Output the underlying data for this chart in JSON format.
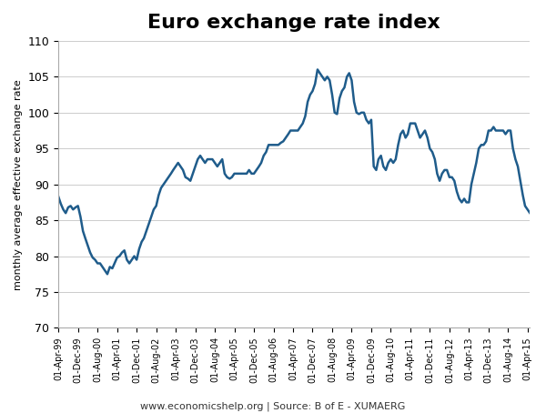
{
  "title": "Euro exchange rate index",
  "ylabel": "monthly average effective exchange rate",
  "source_text": "www.economicshelp.org | Source: B of E - XUMAERG",
  "line_color": "#1F5C8B",
  "line_width": 1.8,
  "ylim": [
    70,
    110
  ],
  "yticks": [
    70,
    75,
    80,
    85,
    90,
    95,
    100,
    105,
    110
  ],
  "background_color": "#FFFFFF",
  "title_fontsize": 16,
  "data": {
    "dates": [
      "1999-04-01",
      "1999-05-01",
      "1999-06-01",
      "1999-07-01",
      "1999-08-01",
      "1999-09-01",
      "1999-10-01",
      "1999-11-01",
      "1999-12-01",
      "2000-01-01",
      "2000-02-01",
      "2000-03-01",
      "2000-04-01",
      "2000-05-01",
      "2000-06-01",
      "2000-07-01",
      "2000-08-01",
      "2000-09-01",
      "2000-10-01",
      "2000-11-01",
      "2000-12-01",
      "2001-01-01",
      "2001-02-01",
      "2001-03-01",
      "2001-04-01",
      "2001-05-01",
      "2001-06-01",
      "2001-07-01",
      "2001-08-01",
      "2001-09-01",
      "2001-10-01",
      "2001-11-01",
      "2001-12-01",
      "2002-01-01",
      "2002-02-01",
      "2002-03-01",
      "2002-04-01",
      "2002-05-01",
      "2002-06-01",
      "2002-07-01",
      "2002-08-01",
      "2002-09-01",
      "2002-10-01",
      "2002-11-01",
      "2002-12-01",
      "2003-01-01",
      "2003-02-01",
      "2003-03-01",
      "2003-04-01",
      "2003-05-01",
      "2003-06-01",
      "2003-07-01",
      "2003-08-01",
      "2003-09-01",
      "2003-10-01",
      "2003-11-01",
      "2003-12-01",
      "2004-01-01",
      "2004-02-01",
      "2004-03-01",
      "2004-04-01",
      "2004-05-01",
      "2004-06-01",
      "2004-07-01",
      "2004-08-01",
      "2004-09-01",
      "2004-10-01",
      "2004-11-01",
      "2004-12-01",
      "2005-01-01",
      "2005-02-01",
      "2005-03-01",
      "2005-04-01",
      "2005-05-01",
      "2005-06-01",
      "2005-07-01",
      "2005-08-01",
      "2005-09-01",
      "2005-10-01",
      "2005-11-01",
      "2005-12-01",
      "2006-01-01",
      "2006-02-01",
      "2006-03-01",
      "2006-04-01",
      "2006-05-01",
      "2006-06-01",
      "2006-07-01",
      "2006-08-01",
      "2006-09-01",
      "2006-10-01",
      "2006-11-01",
      "2006-12-01",
      "2007-01-01",
      "2007-02-01",
      "2007-03-01",
      "2007-04-01",
      "2007-05-01",
      "2007-06-01",
      "2007-07-01",
      "2007-08-01",
      "2007-09-01",
      "2007-10-01",
      "2007-11-01",
      "2007-12-01",
      "2008-01-01",
      "2008-02-01",
      "2008-03-01",
      "2008-04-01",
      "2008-05-01",
      "2008-06-01",
      "2008-07-01",
      "2008-08-01",
      "2008-09-01",
      "2008-10-01",
      "2008-11-01",
      "2008-12-01",
      "2009-01-01",
      "2009-02-01",
      "2009-03-01",
      "2009-04-01",
      "2009-05-01",
      "2009-06-01",
      "2009-07-01",
      "2009-08-01",
      "2009-09-01",
      "2009-10-01",
      "2009-11-01",
      "2009-12-01",
      "2010-01-01",
      "2010-02-01",
      "2010-03-01",
      "2010-04-01",
      "2010-05-01",
      "2010-06-01",
      "2010-07-01",
      "2010-08-01",
      "2010-09-01",
      "2010-10-01",
      "2010-11-01",
      "2010-12-01",
      "2011-01-01",
      "2011-02-01",
      "2011-03-01",
      "2011-04-01",
      "2011-05-01",
      "2011-06-01",
      "2011-07-01",
      "2011-08-01",
      "2011-09-01",
      "2011-10-01",
      "2011-11-01",
      "2011-12-01",
      "2012-01-01",
      "2012-02-01",
      "2012-03-01",
      "2012-04-01",
      "2012-05-01",
      "2012-06-01",
      "2012-07-01",
      "2012-08-01",
      "2012-09-01",
      "2012-10-01",
      "2012-11-01",
      "2012-12-01",
      "2013-01-01",
      "2013-02-01",
      "2013-03-01",
      "2013-04-01",
      "2013-05-01",
      "2013-06-01",
      "2013-07-01",
      "2013-08-01",
      "2013-09-01",
      "2013-10-01",
      "2013-11-01",
      "2013-12-01",
      "2014-01-01",
      "2014-02-01",
      "2014-03-01",
      "2014-04-01",
      "2014-05-01",
      "2014-06-01",
      "2014-07-01",
      "2014-08-01",
      "2014-09-01",
      "2014-10-01",
      "2014-11-01",
      "2014-12-01",
      "2015-01-01",
      "2015-02-01",
      "2015-03-01",
      "2015-04-01",
      "2015-05-01"
    ],
    "values": [
      88.3,
      87.3,
      86.5,
      86.0,
      86.8,
      87.0,
      86.5,
      86.8,
      87.0,
      85.5,
      83.5,
      82.5,
      81.5,
      80.5,
      79.8,
      79.5,
      79.0,
      79.0,
      78.5,
      78.0,
      77.5,
      78.5,
      78.3,
      79.0,
      79.8,
      80.0,
      80.5,
      80.8,
      79.5,
      79.0,
      79.5,
      80.0,
      79.5,
      81.0,
      82.0,
      82.5,
      83.5,
      84.5,
      85.5,
      86.5,
      87.0,
      88.5,
      89.5,
      90.0,
      90.5,
      91.0,
      91.5,
      92.0,
      92.5,
      93.0,
      92.5,
      92.0,
      91.0,
      90.8,
      90.5,
      91.5,
      92.5,
      93.5,
      94.0,
      93.5,
      93.0,
      93.5,
      93.5,
      93.5,
      93.0,
      92.5,
      93.0,
      93.5,
      91.5,
      91.0,
      90.8,
      91.0,
      91.5,
      91.5,
      91.5,
      91.5,
      91.5,
      91.5,
      92.0,
      91.5,
      91.5,
      92.0,
      92.5,
      93.0,
      94.0,
      94.5,
      95.5,
      95.5,
      95.5,
      95.5,
      95.5,
      95.8,
      96.0,
      96.5,
      97.0,
      97.5,
      97.5,
      97.5,
      97.5,
      98.0,
      98.5,
      99.5,
      101.5,
      102.5,
      103.0,
      104.0,
      106.0,
      105.5,
      105.0,
      104.5,
      105.0,
      104.5,
      102.5,
      100.0,
      99.8,
      102.0,
      103.0,
      103.5,
      105.0,
      105.5,
      104.5,
      101.5,
      100.0,
      99.8,
      100.0,
      100.0,
      99.0,
      98.5,
      99.0,
      92.5,
      92.0,
      93.5,
      94.0,
      92.5,
      92.0,
      93.0,
      93.5,
      93.0,
      93.5,
      95.5,
      97.0,
      97.5,
      96.5,
      97.0,
      98.5,
      98.5,
      98.5,
      97.5,
      96.5,
      97.0,
      97.5,
      96.5,
      95.0,
      94.5,
      93.5,
      91.5,
      90.5,
      91.5,
      92.0,
      92.0,
      91.0,
      91.0,
      90.5,
      89.0,
      88.0,
      87.5,
      88.0,
      87.5,
      87.5,
      90.0,
      91.5,
      93.0,
      95.0,
      95.5,
      95.5,
      96.0,
      97.5,
      97.5,
      98.0,
      97.5,
      97.5,
      97.5,
      97.5,
      97.0,
      97.5,
      97.5,
      95.0,
      93.5,
      92.5,
      90.5,
      88.5,
      87.0,
      86.5,
      86.0
    ]
  },
  "xtick_dates": [
    "1999-04-01",
    "1999-12-01",
    "2000-08-01",
    "2001-04-01",
    "2001-12-01",
    "2002-08-01",
    "2003-04-01",
    "2003-12-01",
    "2004-08-01",
    "2005-04-01",
    "2005-12-01",
    "2006-08-01",
    "2007-04-01",
    "2007-12-01",
    "2008-08-01",
    "2009-04-01",
    "2009-12-01",
    "2010-08-01",
    "2011-04-01",
    "2011-12-01",
    "2012-08-01",
    "2013-04-01",
    "2013-12-01",
    "2014-08-01",
    "2015-04-01"
  ],
  "xtick_labels": [
    "01-Apr-99",
    "01-Dec-99",
    "01-Aug-00",
    "01-Apr-01",
    "01-Dec-01",
    "01-Aug-02",
    "01-Apr-03",
    "01-Dec-03",
    "01-Aug-04",
    "01-Apr-05",
    "01-Dec-05",
    "01-Aug-06",
    "01-Apr-07",
    "01-Dec-07",
    "01-Aug-08",
    "01-Apr-09",
    "01-Dec-09",
    "01-Aug-10",
    "01-Apr-11",
    "01-Dec-11",
    "01-Aug-12",
    "01-Apr-13",
    "01-Dec-13",
    "01-Aug-14",
    "01-Apr-15"
  ]
}
